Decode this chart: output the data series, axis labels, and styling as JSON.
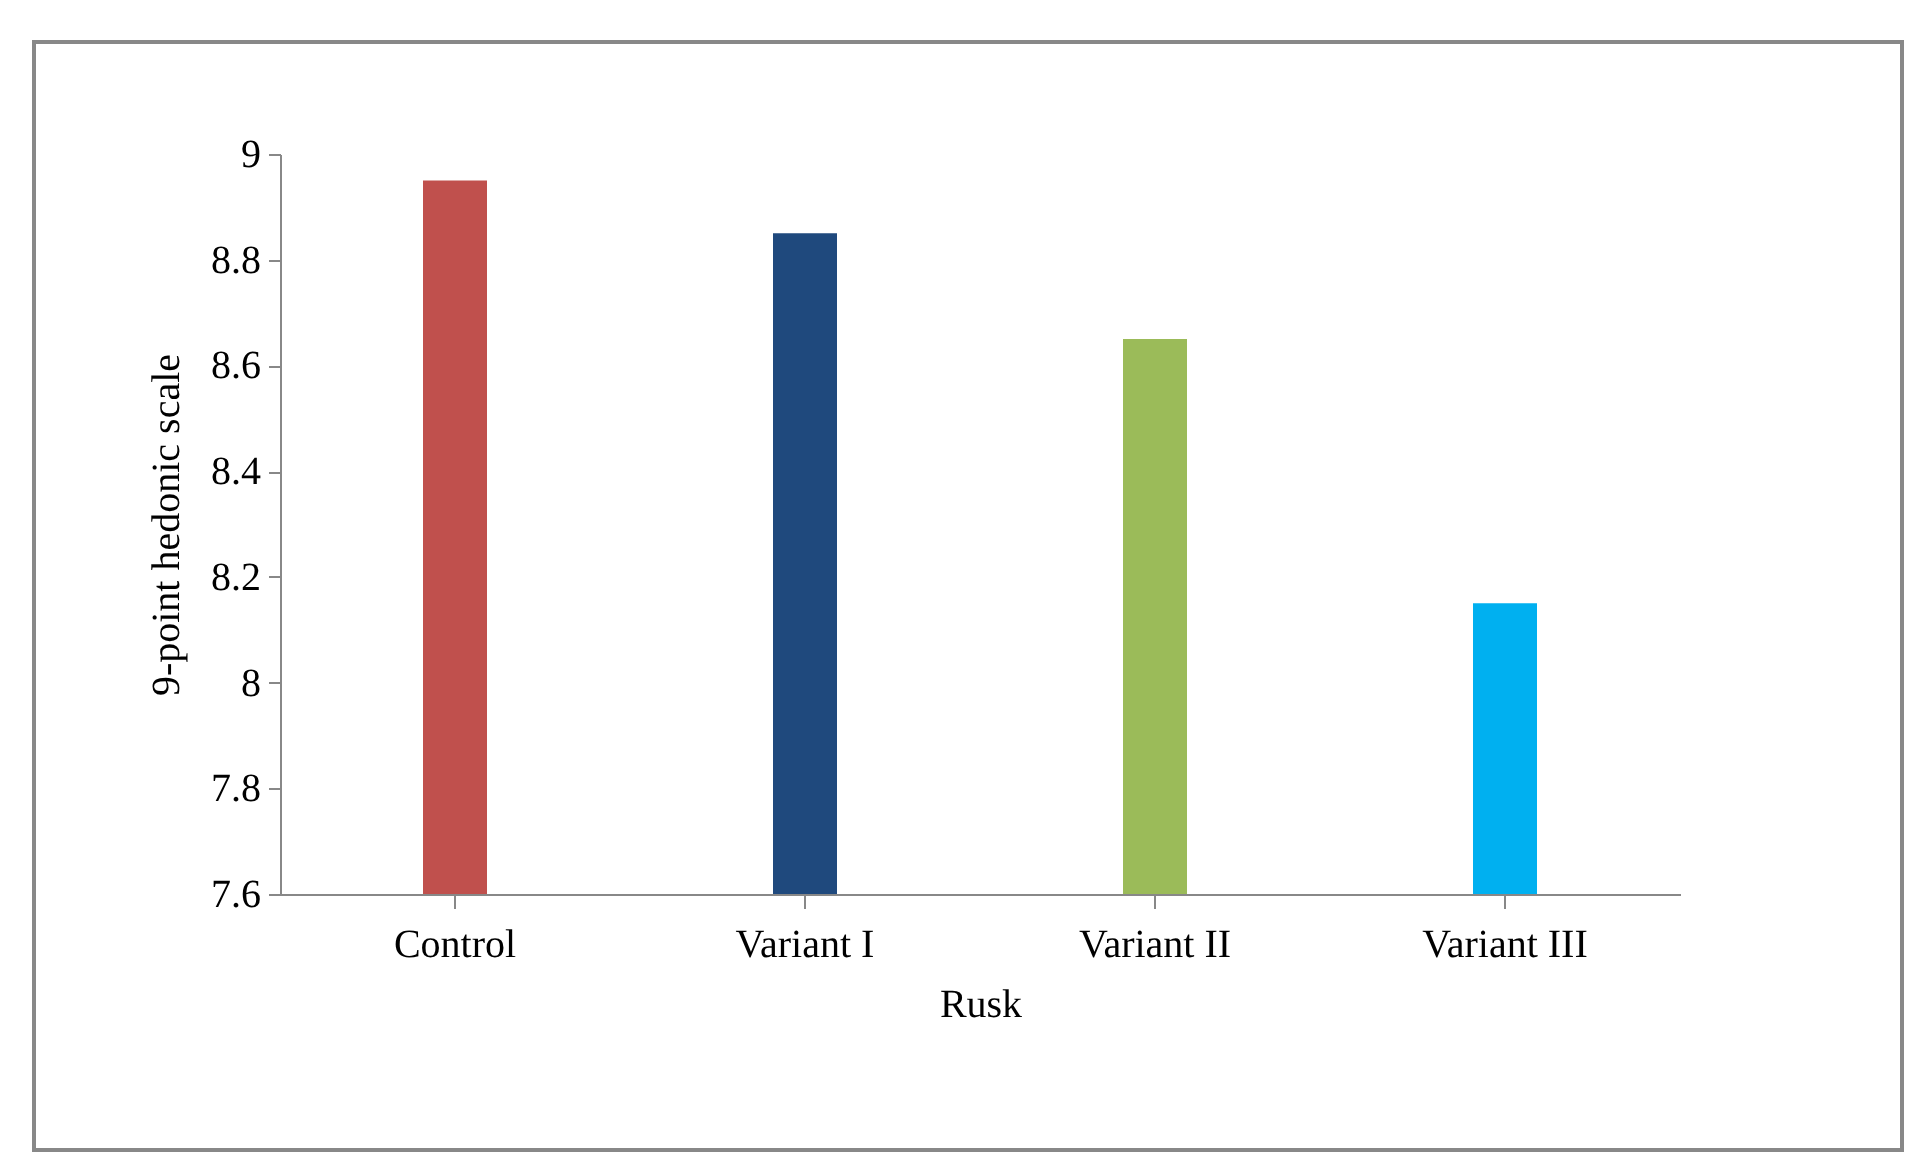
{
  "chart_data": {
    "type": "bar",
    "xlabel": "Rusk",
    "ylabel": "9-point hedonic scale",
    "categories": [
      "Control",
      "Variant I",
      "Variant II",
      "Variant III"
    ],
    "values": [
      8.95,
      8.85,
      8.65,
      8.15
    ],
    "colors": [
      "#c0504d",
      "#1f497d",
      "#9bbb59",
      "#00b0f0"
    ],
    "ylim": [
      7.6,
      9
    ],
    "yticks": [
      7.6,
      7.8,
      8,
      8.2,
      8.4,
      8.6,
      8.8,
      9
    ],
    "grid": false,
    "legend": false
  }
}
